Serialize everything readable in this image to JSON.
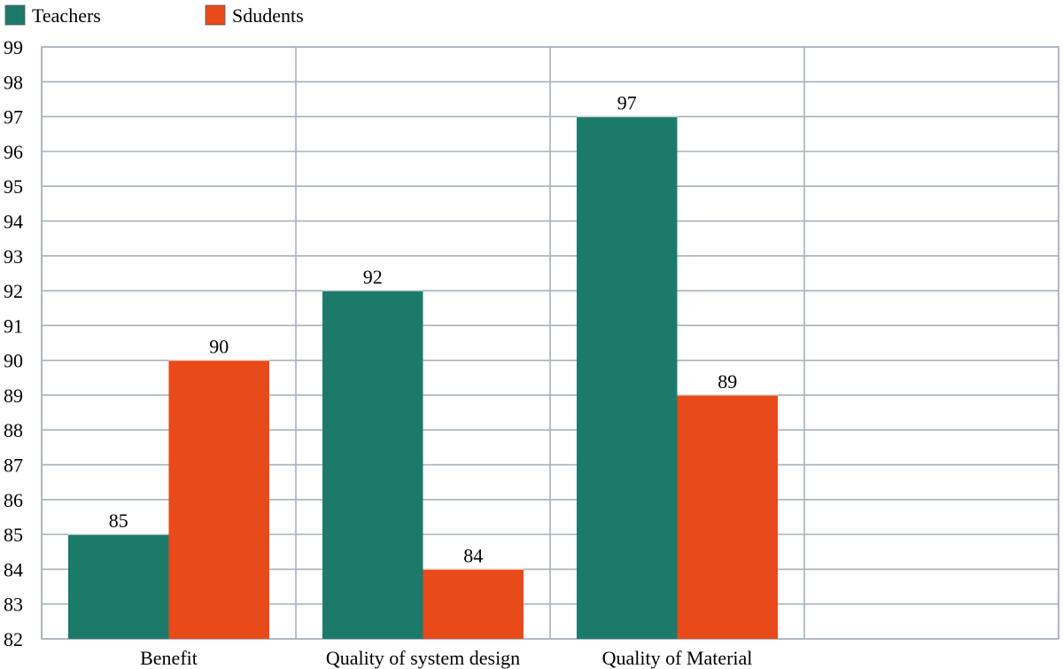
{
  "chart_data": {
    "type": "bar",
    "categories": [
      "Benefit",
      "Quality of system design",
      "Quality of Material",
      ""
    ],
    "series": [
      {
        "name": "Teachers",
        "color": "#1c7a6b",
        "values": [
          85,
          92,
          97,
          null
        ]
      },
      {
        "name": "Sdudents",
        "color": "#e84a1a",
        "values": [
          90,
          84,
          89,
          null
        ]
      }
    ],
    "ylim": [
      82,
      99
    ],
    "ytick_step": 1,
    "grid": true,
    "legend": "top-left",
    "data_labels": true,
    "title": "",
    "xlabel": "",
    "ylabel": ""
  }
}
